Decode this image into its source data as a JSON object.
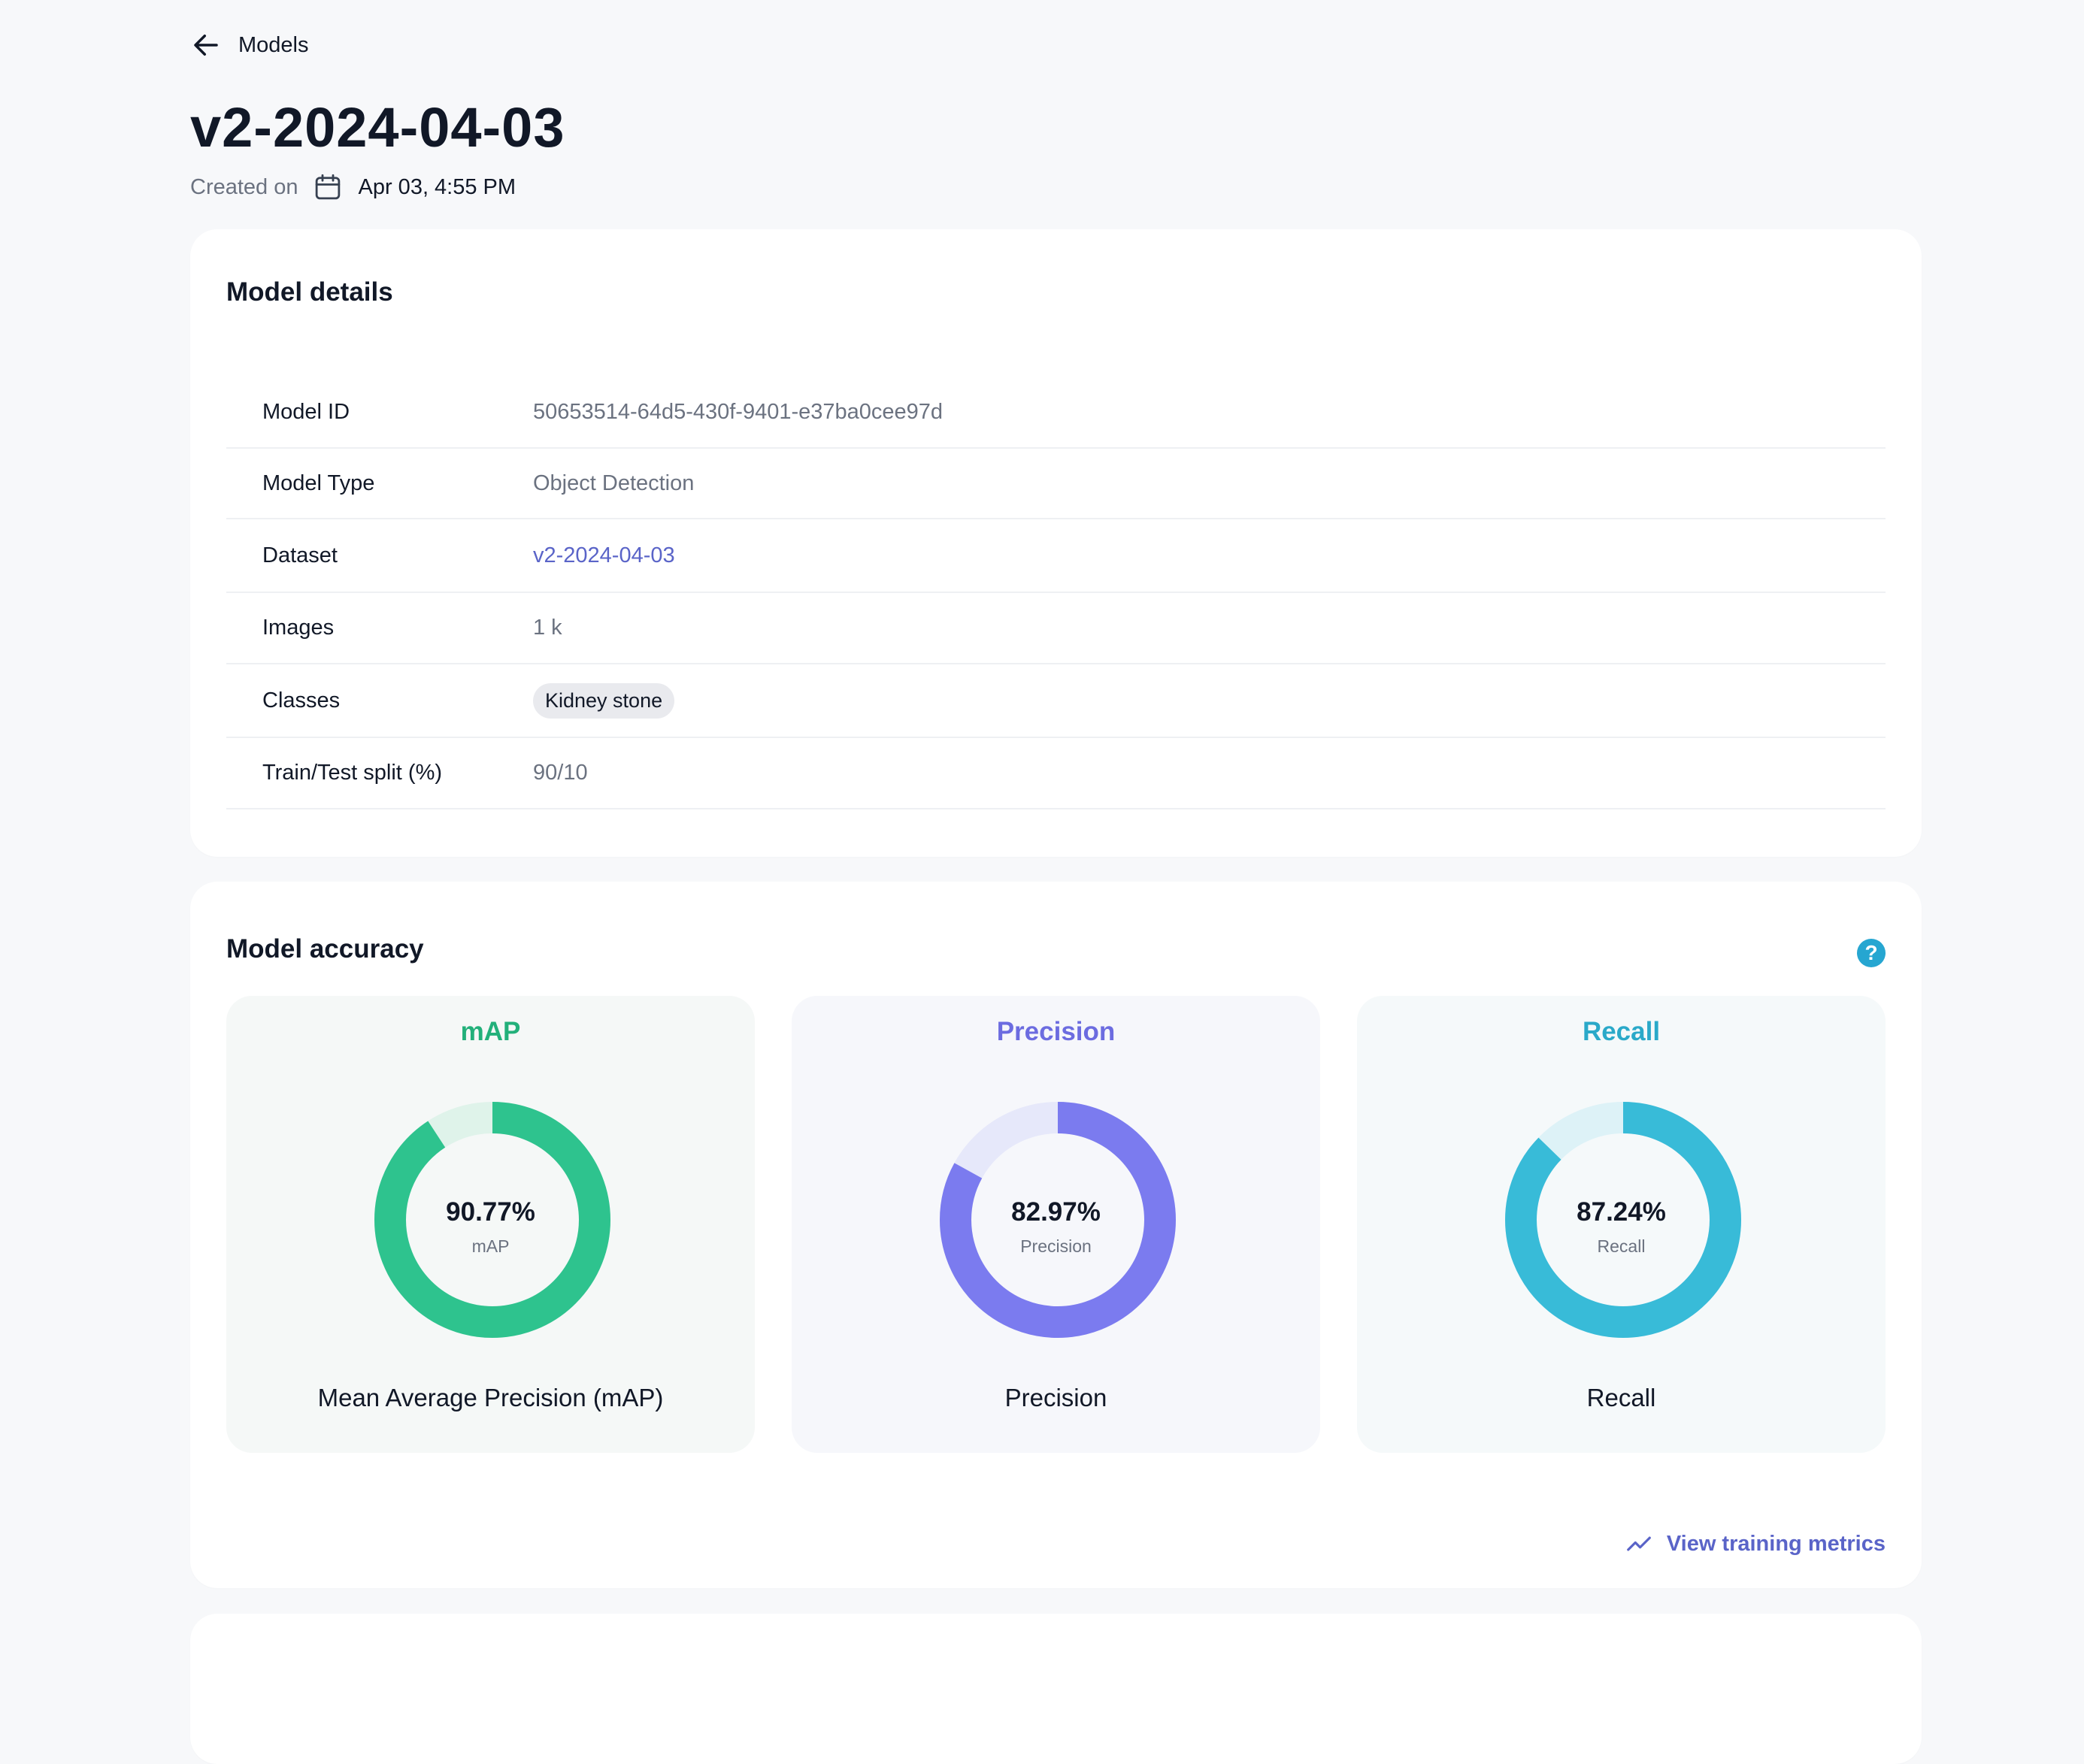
{
  "nav": {
    "back_label": "Models"
  },
  "header": {
    "title": "v2-2024-04-03",
    "created_label": "Created on",
    "created_value": "Apr 03, 4:55 PM"
  },
  "details": {
    "title": "Model details",
    "rows": [
      {
        "key": "Model ID",
        "value": "50653514-64d5-430f-9401-e37ba0cee97d"
      },
      {
        "key": "Model Type",
        "value": "Object Detection"
      },
      {
        "key": "Dataset",
        "value": "v2-2024-04-03"
      },
      {
        "key": "Images",
        "value": "1 k"
      },
      {
        "key": "Classes",
        "value": "Kidney stone"
      },
      {
        "key": "Train/Test split (%)",
        "value": "90/10"
      }
    ]
  },
  "accuracy": {
    "title": "Model accuracy",
    "help_label": "?",
    "metrics": [
      {
        "title": "mAP",
        "value_text": "90.77%",
        "fraction": 0.9077,
        "sub": "mAP",
        "caption": "Mean Average Precision (mAP)",
        "color": "#2ec38e",
        "track": "#dff3ea",
        "bg": "#f5f8f7",
        "title_color": "#22b07a"
      },
      {
        "title": "Precision",
        "value_text": "82.97%",
        "fraction": 0.8297,
        "sub": "Precision",
        "caption": "Precision",
        "color": "#7b7bef",
        "track": "#e6e8fa",
        "bg": "#f6f7fb",
        "title_color": "#6c6ce0"
      },
      {
        "title": "Recall",
        "value_text": "87.24%",
        "fraction": 0.8724,
        "sub": "Recall",
        "caption": "Recall",
        "color": "#38bbd8",
        "track": "#ddf2f7",
        "bg": "#f5f9fa",
        "title_color": "#2aa9c9"
      }
    ],
    "link_label": "View training metrics"
  },
  "colors": {
    "accent": "#5a64c8",
    "help": "#26a6d1"
  }
}
